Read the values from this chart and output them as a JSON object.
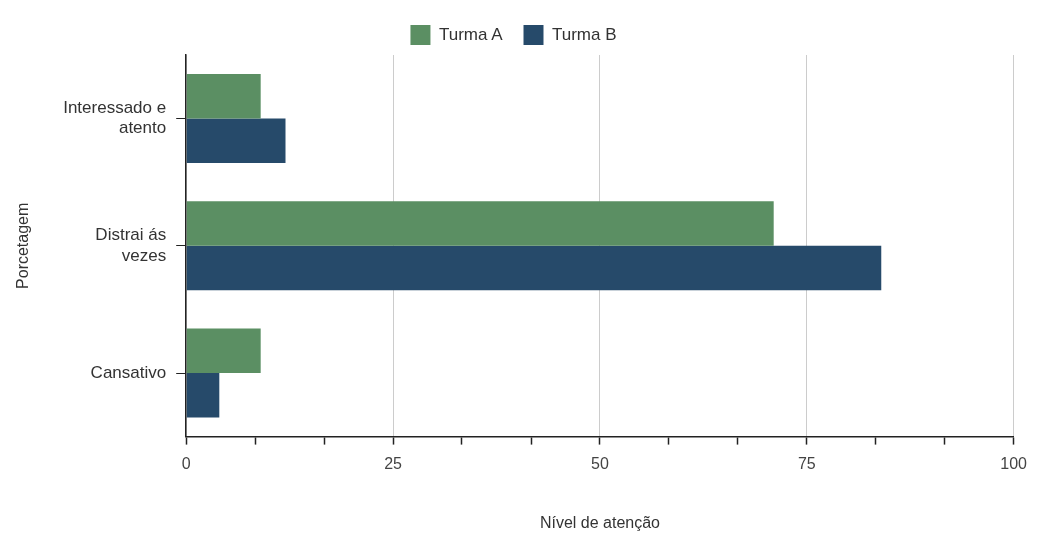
{
  "chart_data": {
    "type": "bar",
    "orientation": "horizontal",
    "xlabel": "Nível de atenção",
    "ylabel": "Porcetagem",
    "categories": [
      "Interessado e atento",
      "Distrai ás vezes",
      "Cansativo"
    ],
    "series": [
      {
        "name": "Turma A",
        "color": "#5b8f63",
        "values": [
          9,
          71,
          9
        ]
      },
      {
        "name": "Turma B",
        "color": "#264a6a",
        "values": [
          12,
          84,
          4
        ]
      }
    ],
    "xlim": [
      0,
      100
    ],
    "xticks": [
      0,
      {
        "value": 8.33,
        "label": null
      },
      {
        "value": 16.67,
        "label": null
      },
      25,
      {
        "value": 33.33,
        "label": null
      },
      {
        "value": 41.67,
        "label": null
      },
      50,
      {
        "value": 58.33,
        "label": null
      },
      {
        "value": 66.67,
        "label": null
      },
      75,
      {
        "value": 83.33,
        "label": null
      },
      {
        "value": 91.67,
        "label": null
      },
      100
    ],
    "grid": "x",
    "legend": "top"
  }
}
